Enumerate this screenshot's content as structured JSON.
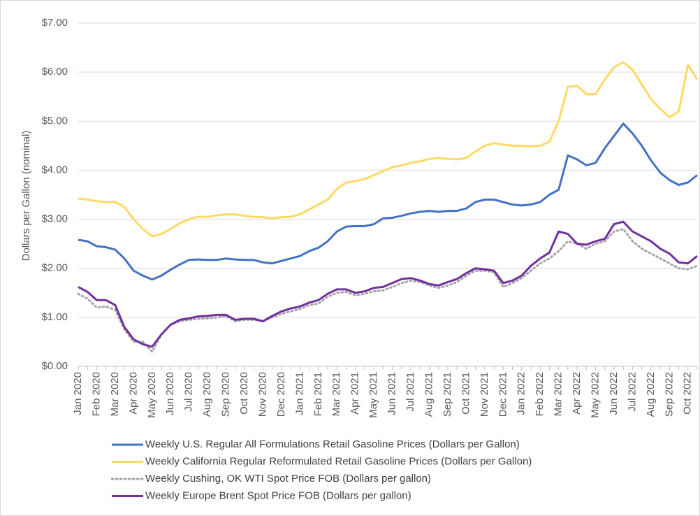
{
  "chart_data": {
    "type": "line",
    "y_label": "Dollars per Gallon (nominal)",
    "categories": [
      "Jan 2020",
      null,
      "Feb 2020",
      null,
      "Mar 2020",
      null,
      "Apr 2020",
      null,
      "May 2020",
      null,
      "Jun 2020",
      null,
      "Jul 2020",
      null,
      "Aug 2020",
      null,
      "Sep 2020",
      null,
      "Oct 2020",
      null,
      "Nov 2020",
      null,
      "Dec 2020",
      null,
      "Jan 2021",
      null,
      "Feb 2021",
      null,
      "Mar 2021",
      null,
      "Apr 2021",
      null,
      "May 2021",
      null,
      "Jun 2021",
      null,
      "Jul 2021",
      null,
      "Aug 2021",
      null,
      "Sep 2021",
      null,
      "Oct 2021",
      null,
      "Nov 2021",
      null,
      "Dec 2021",
      null,
      "Jan 2022",
      null,
      "Feb 2022",
      null,
      "Mar 2022",
      null,
      "Apr 2022",
      null,
      "May 2022",
      null,
      "Jun 2022",
      null,
      "Jul 2022",
      null,
      "Aug 2022",
      null,
      "Sep 2022",
      null,
      "Oct 2022",
      null
    ],
    "series": [
      {
        "name": "Weekly U.S. Regular All Formulations Retail Gasoline Prices  (Dollars per Gallon)",
        "color": "#4472c4",
        "dash": false,
        "values": [
          2.58,
          2.55,
          2.45,
          2.43,
          2.38,
          2.2,
          1.95,
          1.85,
          1.77,
          1.85,
          1.97,
          2.08,
          2.17,
          2.18,
          2.17,
          2.17,
          2.2,
          2.18,
          2.17,
          2.17,
          2.12,
          2.1,
          2.15,
          2.2,
          2.25,
          2.35,
          2.42,
          2.55,
          2.75,
          2.85,
          2.86,
          2.86,
          2.9,
          3.02,
          3.03,
          3.07,
          3.12,
          3.15,
          3.17,
          3.15,
          3.17,
          3.17,
          3.22,
          3.35,
          3.4,
          3.4,
          3.35,
          3.3,
          3.28,
          3.3,
          3.35,
          3.5,
          3.6,
          4.3,
          4.22,
          4.1,
          4.15,
          4.45,
          4.7,
          4.95,
          4.75,
          4.5,
          4.2,
          3.95,
          3.8,
          3.7,
          3.75,
          3.9
        ]
      },
      {
        "name": "Weekly California Regular Reformulated Retail Gasoline Prices  (Dollars per Gallon)",
        "color": "#ffd966",
        "dash": false,
        "values": [
          3.42,
          3.4,
          3.37,
          3.35,
          3.35,
          3.25,
          3.0,
          2.8,
          2.65,
          2.7,
          2.8,
          2.92,
          3.0,
          3.05,
          3.05,
          3.08,
          3.1,
          3.1,
          3.07,
          3.05,
          3.04,
          3.02,
          3.04,
          3.05,
          3.1,
          3.2,
          3.3,
          3.4,
          3.62,
          3.75,
          3.78,
          3.82,
          3.9,
          3.98,
          4.06,
          4.1,
          4.15,
          4.18,
          4.23,
          4.25,
          4.23,
          4.22,
          4.25,
          4.38,
          4.5,
          4.55,
          4.52,
          4.5,
          4.5,
          4.49,
          4.5,
          4.58,
          5.0,
          5.7,
          5.72,
          5.55,
          5.55,
          5.85,
          6.1,
          6.2,
          6.05,
          5.75,
          5.45,
          5.25,
          5.08,
          5.2,
          6.15,
          5.85
        ]
      },
      {
        "name": "Weekly Cushing, OK WTI Spot Price FOB  (Dollars per gallon)",
        "color": "#a6a6a6",
        "dash": true,
        "values": [
          1.48,
          1.38,
          1.2,
          1.22,
          1.15,
          0.75,
          0.5,
          0.5,
          0.3,
          0.65,
          0.85,
          0.92,
          0.95,
          0.97,
          0.98,
          1.0,
          1.02,
          0.92,
          0.95,
          0.95,
          0.92,
          1.0,
          1.07,
          1.12,
          1.17,
          1.25,
          1.28,
          1.42,
          1.5,
          1.52,
          1.45,
          1.48,
          1.53,
          1.55,
          1.62,
          1.7,
          1.75,
          1.72,
          1.65,
          1.6,
          1.65,
          1.72,
          1.85,
          1.95,
          1.95,
          1.92,
          1.62,
          1.7,
          1.8,
          1.95,
          2.1,
          2.2,
          2.35,
          2.55,
          2.5,
          2.4,
          2.5,
          2.55,
          2.75,
          2.8,
          2.55,
          2.4,
          2.3,
          2.2,
          2.1,
          2.0,
          1.98,
          2.05
        ]
      },
      {
        "name": "Weekly Europe Brent Spot Price FOB  (Dollars per gallon)",
        "color": "#7030a0",
        "dash": false,
        "values": [
          1.62,
          1.52,
          1.35,
          1.35,
          1.25,
          0.8,
          0.55,
          0.45,
          0.4,
          0.65,
          0.85,
          0.95,
          0.98,
          1.02,
          1.03,
          1.05,
          1.05,
          0.95,
          0.97,
          0.97,
          0.92,
          1.03,
          1.12,
          1.18,
          1.22,
          1.3,
          1.35,
          1.48,
          1.57,
          1.57,
          1.5,
          1.53,
          1.6,
          1.62,
          1.7,
          1.78,
          1.8,
          1.75,
          1.68,
          1.65,
          1.72,
          1.78,
          1.9,
          2.0,
          1.98,
          1.95,
          1.7,
          1.75,
          1.85,
          2.05,
          2.2,
          2.32,
          2.75,
          2.7,
          2.5,
          2.48,
          2.55,
          2.6,
          2.9,
          2.95,
          2.75,
          2.65,
          2.55,
          2.4,
          2.3,
          2.12,
          2.1,
          2.25
        ]
      }
    ],
    "ylim": [
      0,
      7
    ],
    "yticks": [
      {
        "value": 0,
        "label": "$0.00"
      },
      {
        "value": 1,
        "label": "$1.00"
      },
      {
        "value": 2,
        "label": "$2.00"
      },
      {
        "value": 3,
        "label": "$3.00"
      },
      {
        "value": 4,
        "label": "$4.00"
      },
      {
        "value": 5,
        "label": "$5.00"
      },
      {
        "value": 6,
        "label": "$6.00"
      },
      {
        "value": 7,
        "label": "$7.00"
      }
    ],
    "grid": true,
    "legend": "bottom"
  }
}
